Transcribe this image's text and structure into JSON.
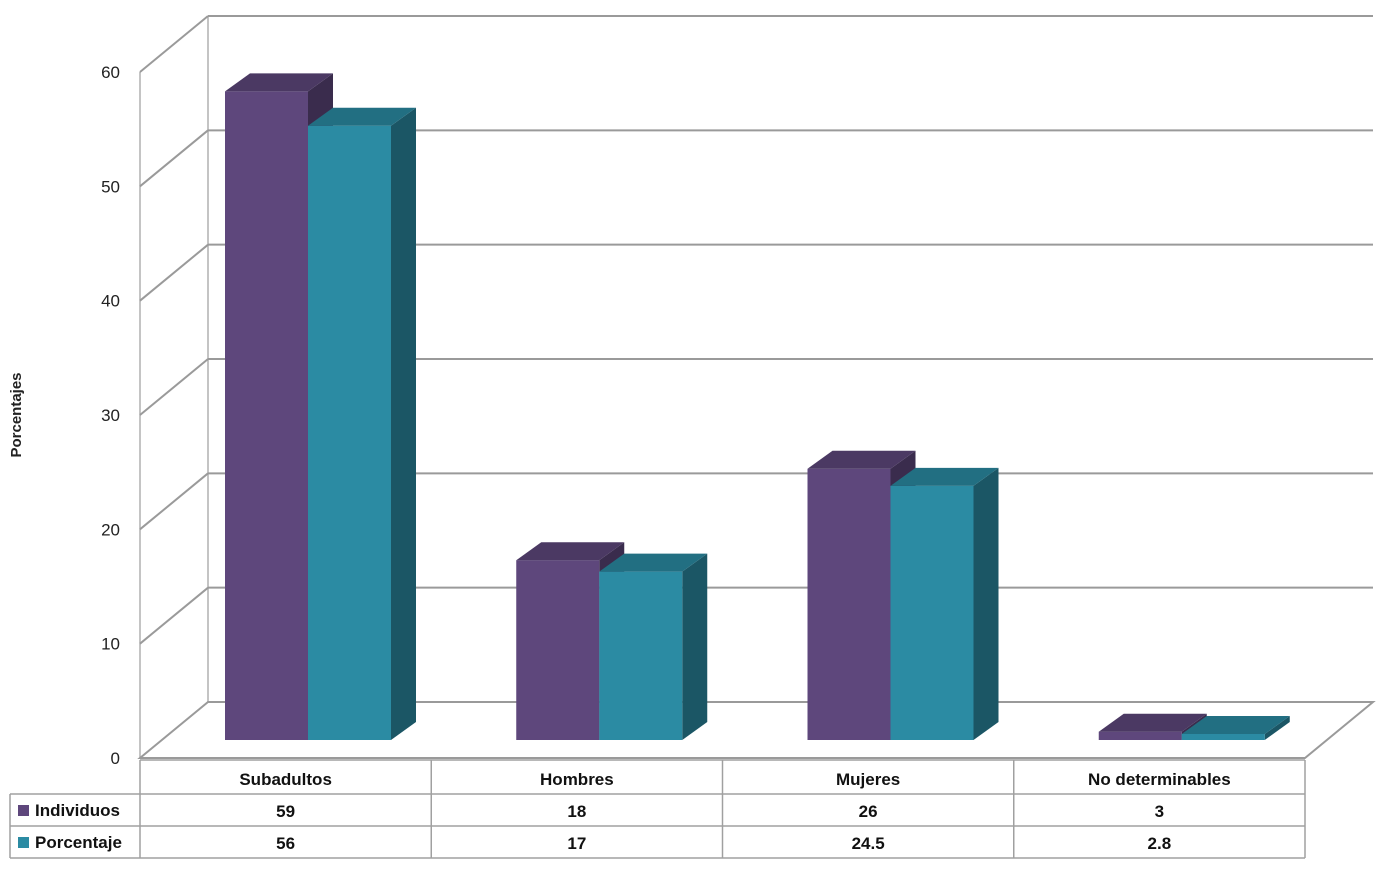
{
  "chart_data": {
    "type": "bar",
    "ylabel": "Porcentajes",
    "xlabel": "",
    "ylim": [
      0,
      60
    ],
    "yticks": [
      0,
      10,
      20,
      30,
      40,
      50,
      60
    ],
    "grid": true,
    "categories": [
      "Subadultos",
      "Hombres",
      "Mujeres",
      "No determinables"
    ],
    "series": [
      {
        "name": "Individuos",
        "values": [
          59,
          18,
          26,
          3
        ],
        "labels": [
          "59",
          "18",
          "26",
          "3"
        ],
        "color": "#5e477c"
      },
      {
        "name": "Porcentaje",
        "values": [
          56,
          17,
          24.5,
          2.8
        ],
        "labels": [
          "56",
          "17",
          "24.5",
          "2.8"
        ],
        "color": "#2b8ba3"
      }
    ],
    "legend": "data-table"
  }
}
